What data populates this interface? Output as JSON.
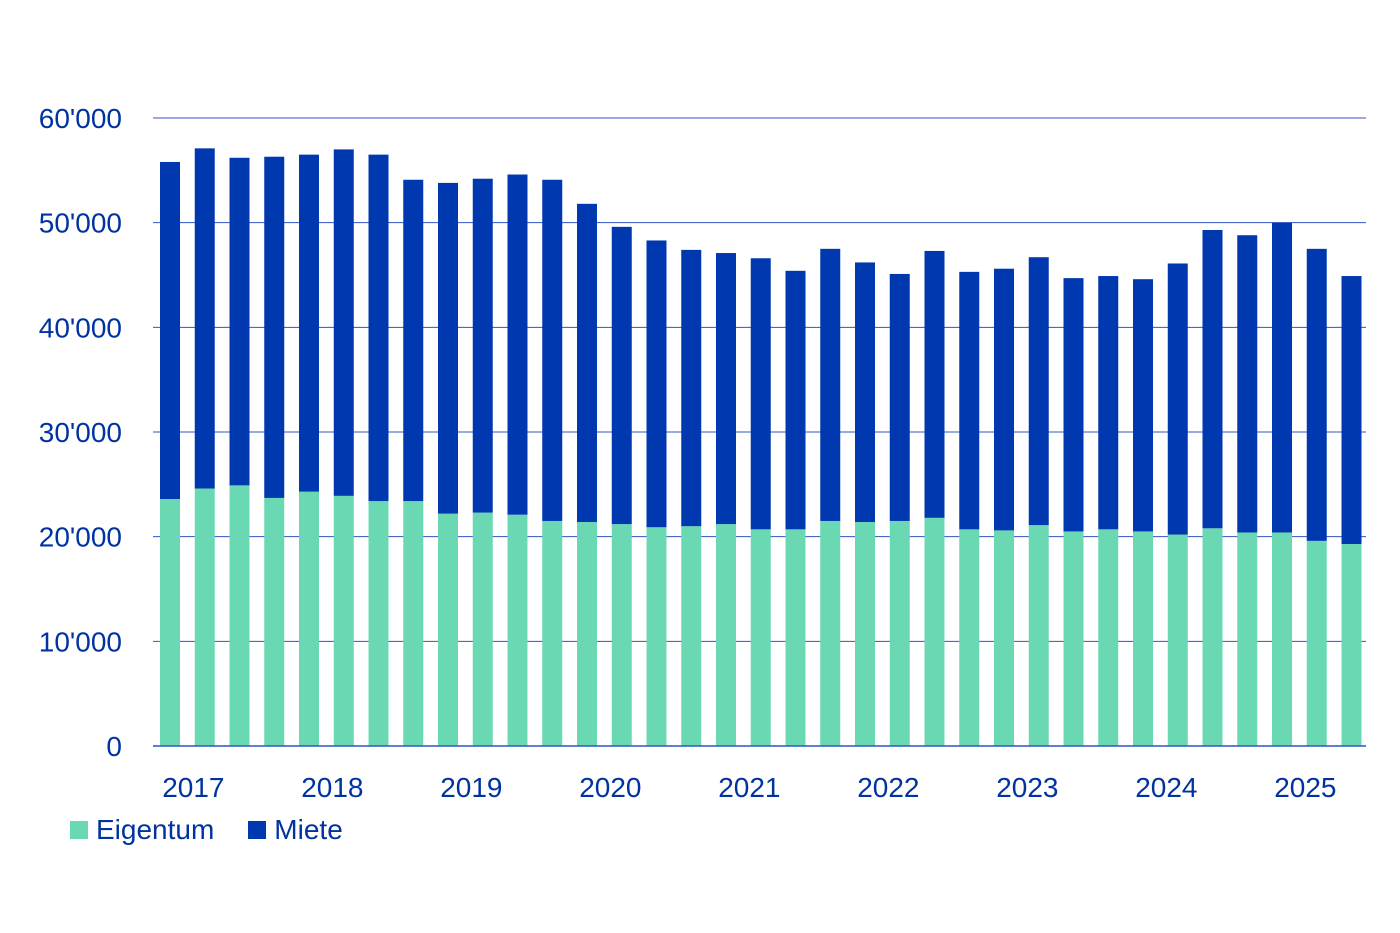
{
  "chart_data": {
    "type": "bar",
    "stacked": true,
    "title": "",
    "xlabel": "",
    "ylabel": "",
    "ylim": [
      0,
      60000
    ],
    "yticks": [
      0,
      10000,
      20000,
      30000,
      40000,
      50000,
      60000
    ],
    "ytick_labels": [
      "0",
      "10'000",
      "20'000",
      "30'000",
      "40'000",
      "50'000",
      "60'000"
    ],
    "x_groups": [
      "2017",
      "2018",
      "2019",
      "2020",
      "2021",
      "2022",
      "2023",
      "2024",
      "2025"
    ],
    "categories": [
      "2017 Q1",
      "2017 Q2",
      "2017 Q3",
      "2017 Q4",
      "2018 Q1",
      "2018 Q2",
      "2018 Q3",
      "2018 Q4",
      "2019 Q1",
      "2019 Q2",
      "2019 Q3",
      "2019 Q4",
      "2020 Q1",
      "2020 Q2",
      "2020 Q3",
      "2020 Q4",
      "2021 Q1",
      "2021 Q2",
      "2021 Q3",
      "2021 Q4",
      "2022 Q1",
      "2022 Q2",
      "2022 Q3",
      "2022 Q4",
      "2023 Q1",
      "2023 Q2",
      "2023 Q3",
      "2023 Q4",
      "2024 Q1",
      "2024 Q2",
      "2024 Q3",
      "2024 Q4",
      "2025 Q1",
      "2025 Q2",
      "2025 Q3"
    ],
    "series": [
      {
        "name": "Eigentum",
        "color": "#6bd8b4",
        "values": [
          23600,
          24600,
          24900,
          23700,
          24300,
          23900,
          23400,
          23400,
          22200,
          22300,
          22100,
          21500,
          21400,
          21200,
          20900,
          21000,
          21200,
          20700,
          20700,
          21500,
          21400,
          21500,
          21800,
          20700,
          20600,
          21100,
          20500,
          20700,
          20500,
          20200,
          20800,
          20400,
          20400,
          19600,
          19300
        ]
      },
      {
        "name": "Miete",
        "color": "#0038b0",
        "values": [
          32200,
          32500,
          31300,
          32600,
          32200,
          33100,
          33100,
          30700,
          31600,
          31900,
          32500,
          32600,
          30400,
          28400,
          27400,
          26400,
          25900,
          25900,
          24700,
          26000,
          24800,
          23600,
          25500,
          24600,
          25000,
          25600,
          24200,
          24200,
          24100,
          25900,
          28500,
          28400,
          29600,
          27900,
          25600
        ]
      }
    ],
    "grid": true,
    "legend_position": "bottom-left"
  }
}
